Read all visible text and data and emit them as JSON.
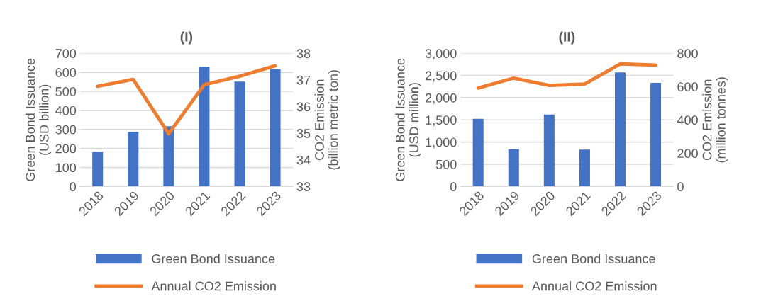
{
  "chart_data": [
    {
      "type": "bar",
      "title": "(I)",
      "ylabel": "Green Bond Issuance\n(USD billion)",
      "y2label": "CO2 Emission\n(billion metric ton)",
      "categories": [
        "2018",
        "2019",
        "2020",
        "2021",
        "2022",
        "2023"
      ],
      "series": [
        {
          "name": "Green Bond Issuance",
          "color": "#4472c4",
          "values": [
            183,
            287,
            317,
            630,
            551,
            616
          ]
        },
        {
          "name": "Annual CO2 Emission",
          "type": "line",
          "axis": "y2",
          "color": "#ed7d31",
          "values": [
            36.76,
            37.02,
            34.98,
            36.82,
            37.14,
            37.53
          ]
        }
      ],
      "ylim": [
        0,
        700
      ],
      "yticks": [
        0,
        100,
        200,
        300,
        400,
        500,
        600,
        700
      ],
      "y2lim": [
        33,
        38
      ],
      "y2ticks": [
        33,
        34,
        35,
        36,
        37,
        38
      ],
      "grid": "y",
      "legend": "bottom",
      "marker": "none"
    },
    {
      "type": "bar",
      "title": "(II)",
      "ylabel": "Green Bond Issuance\n(USD million)",
      "y2label": "CO2 Emission\n(million tonnes)",
      "categories": [
        "2018",
        "2019",
        "2020",
        "2021",
        "2022",
        "2023"
      ],
      "series": [
        {
          "name": "Green Bond Issuance",
          "color": "#4472c4",
          "values": [
            1524,
            837,
            1620,
            831,
            2568,
            2334
          ]
        },
        {
          "name": "Annual CO2 Emission",
          "type": "line",
          "axis": "y2",
          "color": "#ed7d31",
          "values": [
            591,
            651,
            607,
            615,
            736,
            729
          ]
        }
      ],
      "ylim": [
        0,
        3000
      ],
      "yticks": [
        0,
        {
          "value": 500,
          "label": "500"
        },
        {
          "value": 1000,
          "label": "1,000"
        },
        {
          "value": 1500,
          "label": "1,500"
        },
        {
          "value": 2000,
          "label": "2,000"
        },
        {
          "value": 2500,
          "label": "2,500"
        },
        {
          "value": 3000,
          "label": "3,000"
        }
      ],
      "y2lim": [
        0,
        800
      ],
      "y2ticks": [
        0,
        200,
        400,
        600,
        800
      ],
      "grid": "y",
      "legend": "bottom",
      "marker": "none"
    }
  ]
}
